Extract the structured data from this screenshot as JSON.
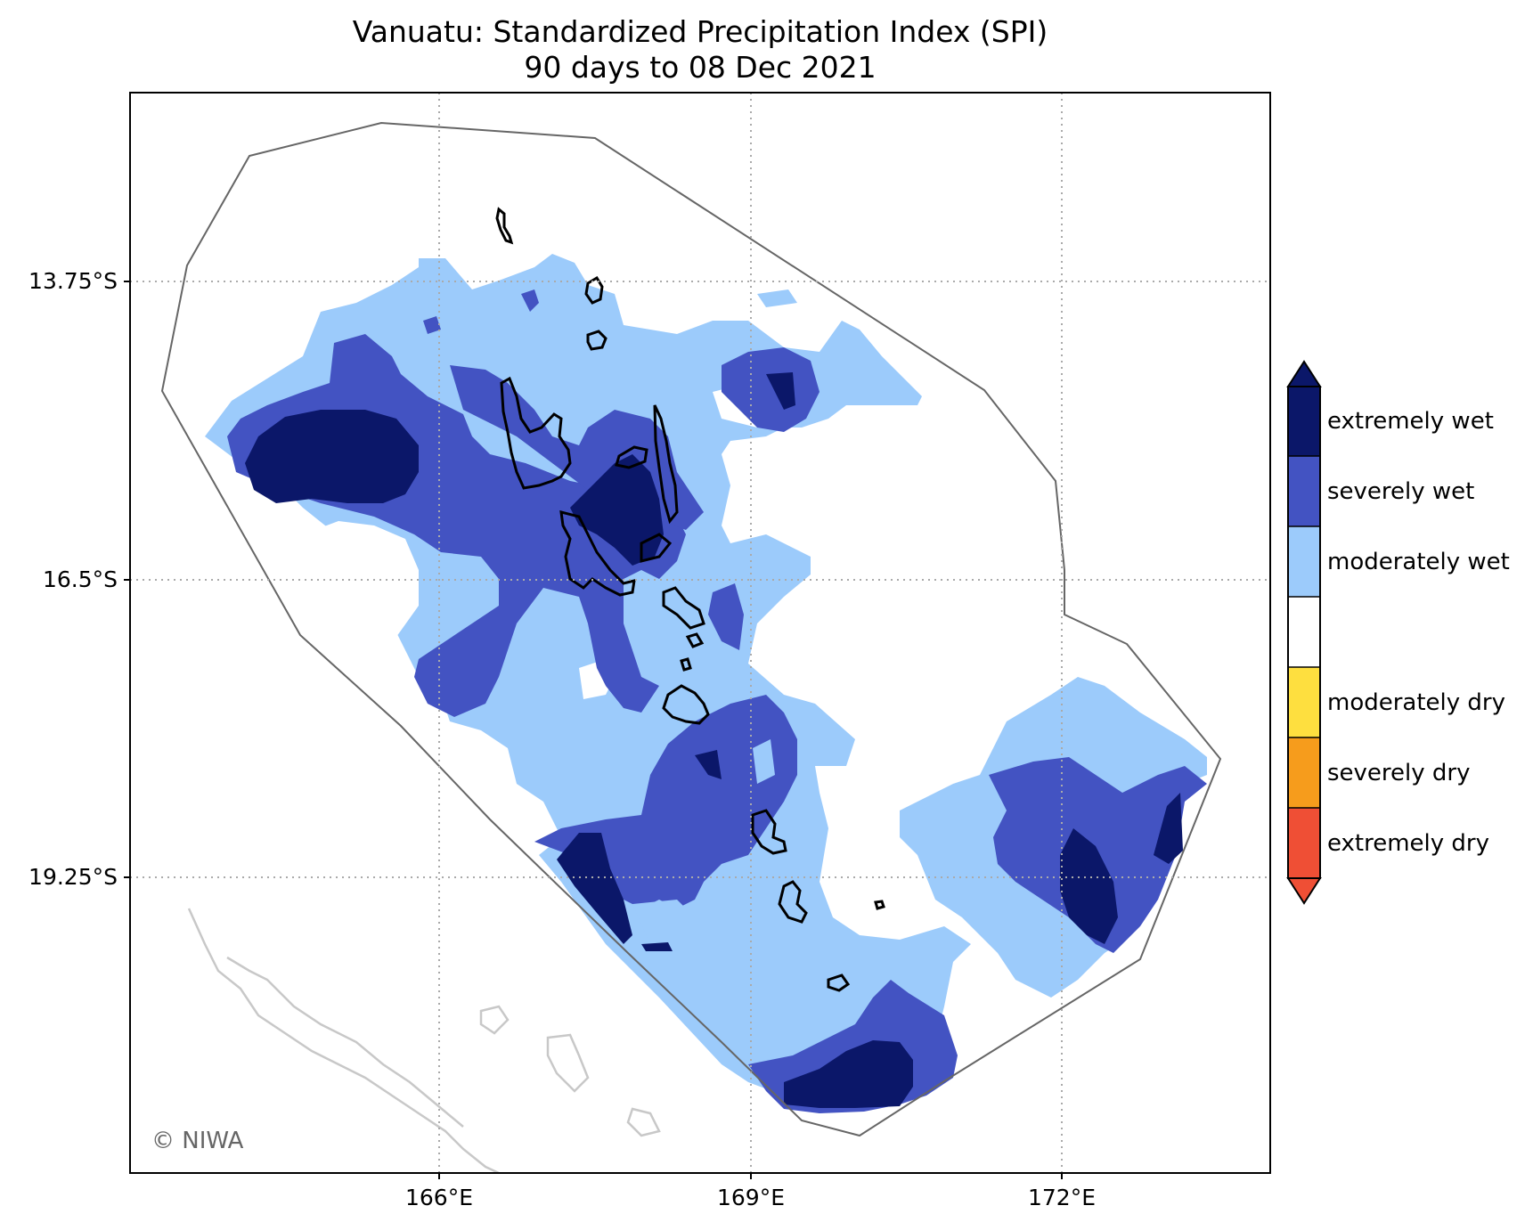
{
  "map": {
    "title_line1": "Vanuatu: Standardized Precipitation Index (SPI)",
    "title_line2": "90 days to 08 Dec 2021",
    "y_ticks": [
      "13.75°S",
      "16.5°S",
      "19.25°S"
    ],
    "x_ticks": [
      "166°E",
      "169°E",
      "172°E"
    ],
    "credit": "© NIWA"
  },
  "legend": {
    "items": [
      {
        "label": "extremely wet",
        "color": "#0b1769"
      },
      {
        "label": "severely wet",
        "color": "#4353c2"
      },
      {
        "label": "moderately wet",
        "color": "#9ccbfb"
      },
      {
        "label": "",
        "color": "#ffffff"
      },
      {
        "label": "moderately dry",
        "color": "#fedf3f"
      },
      {
        "label": "severely dry",
        "color": "#f69c1c"
      },
      {
        "label": "extremely dry",
        "color": "#ef4f35"
      }
    ]
  },
  "colors": {
    "border": "#666666",
    "coast": "#000000",
    "grid": "#aaaaaa",
    "neighbour_coast": "#c8c8c8"
  }
}
